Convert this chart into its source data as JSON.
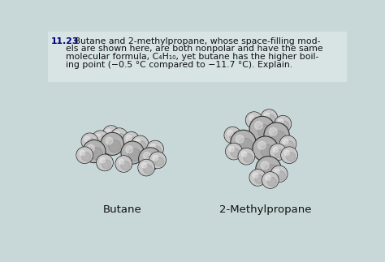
{
  "bg_color_top": "#d4dfe0",
  "bg_color_main": "#c8d8d8",
  "text_color": "#111111",
  "label_color": "#111111",
  "title_number": "11.23",
  "line1_bold": "11.23",
  "line1_rest": " Butane and 2-methylpropane, whose space-filling mod-",
  "line2": "els are shown here, are both nonpolar and have the same",
  "line3": "molecular formula, C₄H₁₀, yet butane has the higher boil-",
  "line4": "ing point (−0.5 °C compared to −11.7 °C). Explain.",
  "label_butane": "Butane",
  "label_methyl": "2-Methylpropane",
  "sphere_gray": "#b8b8b8",
  "sphere_mid": "#a0a0a0",
  "sphere_dark": "#888888",
  "sphere_edge": "#1a1a1a",
  "sphere_edge_light": "#555555"
}
